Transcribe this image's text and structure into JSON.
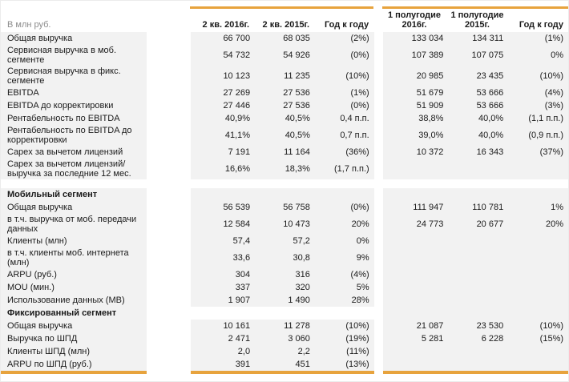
{
  "meta": {
    "units_label": "В млн руб."
  },
  "colors": {
    "accent": "#E7A33D",
    "row_bg": "#F2F2F2",
    "muted_text": "#8C8C8C",
    "text": "#1A1A1A"
  },
  "table": {
    "column_headers": {
      "q2_2016": "2 кв. 2016г.",
      "q2_2015": "2 кв. 2015г.",
      "yoy_q": "Год к году",
      "h1_2016": "1 полугодие 2016г.",
      "h1_2015": "1 полугодие 2015г.",
      "yoy_h": "Год к году"
    },
    "rows": [
      {
        "label": "Общая выручка",
        "q2_2016": "66 700",
        "q2_2015": "68 035",
        "yoy_q": "(2%)",
        "h1_2016": "133 034",
        "h1_2015": "134 311",
        "yoy_h": "(1%)"
      },
      {
        "label": "Сервисная выручка в моб. сегменте",
        "q2_2016": "54 732",
        "q2_2015": "54 926",
        "yoy_q": "(0%)",
        "h1_2016": "107 389",
        "h1_2015": "107 075",
        "yoy_h": "0%"
      },
      {
        "label": "Сервисная выручка в фикс. сегменте",
        "q2_2016": "10 123",
        "q2_2015": "11 235",
        "yoy_q": "(10%)",
        "h1_2016": "20 985",
        "h1_2015": "23 435",
        "yoy_h": "(10%)"
      },
      {
        "label": "EBITDA",
        "q2_2016": "27 269",
        "q2_2015": "27 536",
        "yoy_q": "(1%)",
        "h1_2016": "51 679",
        "h1_2015": "53 666",
        "yoy_h": "(4%)"
      },
      {
        "label": "EBITDA до корректировки",
        "q2_2016": "27 446",
        "q2_2015": "27 536",
        "yoy_q": "(0%)",
        "h1_2016": "51 909",
        "h1_2015": "53 666",
        "yoy_h": "(3%)"
      },
      {
        "label": "Рентабельность по EBITDA",
        "q2_2016": "40,9%",
        "q2_2015": "40,5%",
        "yoy_q": "0,4 п.п.",
        "h1_2016": "38,8%",
        "h1_2015": "40,0%",
        "yoy_h": "(1,1 п.п.)"
      },
      {
        "label": "Рентабельность по EBITDA до корректировки",
        "q2_2016": "41,1%",
        "q2_2015": "40,5%",
        "yoy_q": "0,7 п.п.",
        "h1_2016": "39,0%",
        "h1_2015": "40,0%",
        "yoy_h": "(0,9 п.п.)"
      },
      {
        "label": "Capex за вычетом лицензий",
        "q2_2016": "7 191",
        "q2_2015": "11 164",
        "yoy_q": "(36%)",
        "h1_2016": "10 372",
        "h1_2015": "16 343",
        "yoy_h": "(37%)"
      },
      {
        "label": "Capex за вычетом лицензий/выручка за последние 12 мес.",
        "q2_2016": "16,6%",
        "q2_2015": "18,3%",
        "yoy_q": "(1,7 п.п.)",
        "h1_2016": "",
        "h1_2015": "",
        "yoy_h": ""
      },
      {
        "type": "spacer"
      },
      {
        "label": "Мобильный сегмент",
        "bold": true,
        "q2_2016": "",
        "q2_2015": "",
        "yoy_q": "",
        "h1_2016": "",
        "h1_2015": "",
        "yoy_h": ""
      },
      {
        "label": "Общая выручка",
        "q2_2016": "56 539",
        "q2_2015": "56 758",
        "yoy_q": "(0%)",
        "h1_2016": "111 947",
        "h1_2015": "110 781",
        "yoy_h": "1%"
      },
      {
        "label": "в т.ч. выручка от моб. передачи данных",
        "q2_2016": "12 584",
        "q2_2015": "10 473",
        "yoy_q": "20%",
        "h1_2016": "24 773",
        "h1_2015": "20 677",
        "yoy_h": "20%"
      },
      {
        "label": "Клиенты (млн)",
        "q2_2016": "57,4",
        "q2_2015": "57,2",
        "yoy_q": "0%",
        "h1_2016": "",
        "h1_2015": "",
        "yoy_h": ""
      },
      {
        "label": "в т.ч. клиенты моб. интернета (млн)",
        "q2_2016": "33,6",
        "q2_2015": "30,8",
        "yoy_q": "9%",
        "h1_2016": "",
        "h1_2015": "",
        "yoy_h": ""
      },
      {
        "label": "ARPU (руб.)",
        "q2_2016": "304",
        "q2_2015": "316",
        "yoy_q": "(4%)",
        "h1_2016": "",
        "h1_2015": "",
        "yoy_h": ""
      },
      {
        "label": "MOU (мин.)",
        "q2_2016": "337",
        "q2_2015": "320",
        "yoy_q": "5%",
        "h1_2016": "",
        "h1_2015": "",
        "yoy_h": ""
      },
      {
        "label": "Использование данных (МВ)",
        "q2_2016": "1 907",
        "q2_2015": "1 490",
        "yoy_q": "28%",
        "h1_2016": "",
        "h1_2015": "",
        "yoy_h": ""
      },
      {
        "label": "Фиксированный сегмент",
        "bold": true,
        "mid_white": true,
        "q2_2016": "",
        "q2_2015": "",
        "yoy_q": "",
        "h1_2016": "",
        "h1_2015": "",
        "yoy_h": ""
      },
      {
        "label": "Общая выручка",
        "q2_2016": "10 161",
        "q2_2015": "11 278",
        "yoy_q": "(10%)",
        "h1_2016": "21 087",
        "h1_2015": "23 530",
        "yoy_h": "(10%)"
      },
      {
        "label": "Выручка по ШПД",
        "q2_2016": "2 471",
        "q2_2015": "3 060",
        "yoy_q": "(19%)",
        "h1_2016": "5 281",
        "h1_2015": "6 228",
        "yoy_h": "(15%)"
      },
      {
        "label": "Клиенты ШПД (млн)",
        "q2_2016": "2,0",
        "q2_2015": "2,2",
        "yoy_q": "(11%)",
        "h1_2016": "",
        "h1_2015": "",
        "yoy_h": ""
      },
      {
        "label": "ARPU по ШПД (руб.)",
        "q2_2016": "391",
        "q2_2015": "451",
        "yoy_q": "(13%)",
        "h1_2016": "",
        "h1_2015": "",
        "yoy_h": ""
      }
    ]
  }
}
